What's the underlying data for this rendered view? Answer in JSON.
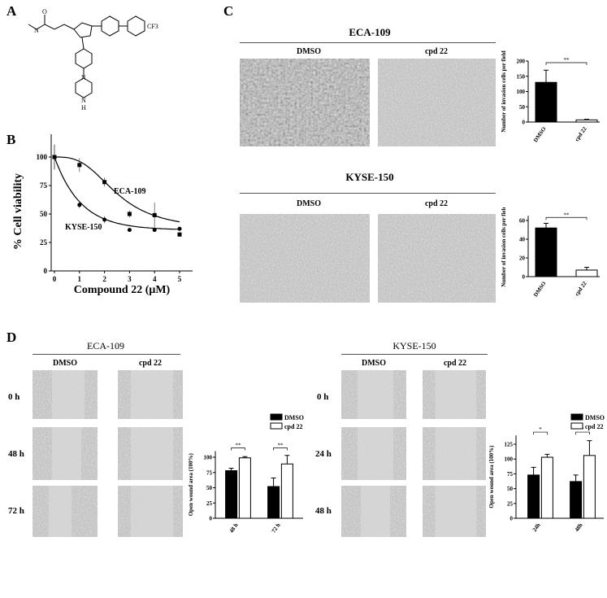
{
  "panels": {
    "A": {
      "label": "A",
      "substituent": "CF3",
      "atoms": {
        "N": "N",
        "H": "H",
        "O": "O"
      }
    },
    "B": {
      "label": "B"
    },
    "C": {
      "label": "C",
      "conditions": [
        "DMSO",
        "cpd 22"
      ],
      "cell_lines": [
        "ECA-109",
        "KYSE-150"
      ]
    },
    "D": {
      "label": "D",
      "left_title": "ECA-109",
      "right_title": "KYSE-150",
      "conditions": [
        "DMSO",
        "cpd 22"
      ],
      "left_rows": [
        "0 h",
        "48 h",
        "72 h"
      ],
      "right_rows": [
        "0 h",
        "24 h",
        "48 h"
      ]
    }
  },
  "chart_data": [
    {
      "id": "B",
      "type": "line",
      "xlabel": "Compound 22 (μM)",
      "ylabel": "% Cell viability",
      "xlim": [
        0,
        5
      ],
      "ylim": [
        0,
        110
      ],
      "xticks": [
        0,
        1,
        2,
        3,
        4,
        5
      ],
      "yticks": [
        0,
        25,
        50,
        75,
        100
      ],
      "series": [
        {
          "name": "ECA-109",
          "marker": "square",
          "x": [
            0,
            1,
            2,
            3,
            4,
            5
          ],
          "y": [
            100,
            93,
            78,
            50,
            49,
            32
          ],
          "err": [
            11,
            6,
            4,
            3,
            11,
            2
          ]
        },
        {
          "name": "KYSE-150",
          "marker": "circle",
          "x": [
            0,
            1,
            2,
            3,
            4,
            5
          ],
          "y": [
            100,
            58,
            45,
            36,
            36,
            37
          ],
          "err": [
            11,
            3,
            3,
            1,
            1,
            1
          ]
        }
      ]
    },
    {
      "id": "C1",
      "type": "bar",
      "ylabel": "Number of invasion cells per field",
      "categories": [
        "DMSO",
        "cpd 22"
      ],
      "values": [
        130,
        7
      ],
      "err": [
        40,
        2
      ],
      "ylim": [
        0,
        200
      ],
      "yticks": [
        0,
        50,
        100,
        150,
        200
      ],
      "significance": "**"
    },
    {
      "id": "C2",
      "type": "bar",
      "ylabel": "Number of invasion cells per field",
      "categories": [
        "DMSO",
        "cpd 22"
      ],
      "values": [
        52,
        7
      ],
      "err": [
        5,
        3
      ],
      "ylim": [
        0,
        65
      ],
      "yticks": [
        0,
        20,
        40,
        60
      ],
      "significance": "**"
    },
    {
      "id": "D1",
      "type": "bar",
      "ylabel": "Open wound area (100%)",
      "categories": [
        "48 h",
        "72 h"
      ],
      "series": [
        {
          "name": "DMSO",
          "values": [
            78,
            52
          ],
          "err": [
            4,
            14
          ]
        },
        {
          "name": "cpd 22",
          "values": [
            99,
            89
          ],
          "err": [
            2,
            14
          ]
        }
      ],
      "ylim": [
        0,
        110
      ],
      "yticks": [
        0,
        25,
        50,
        75,
        100
      ],
      "significance": [
        "**",
        "**"
      ],
      "legend": "top-right"
    },
    {
      "id": "D2",
      "type": "bar",
      "ylabel": "Open wound area (100%)",
      "categories": [
        "24h",
        "48h"
      ],
      "series": [
        {
          "name": "DMSO",
          "values": [
            73,
            62
          ],
          "err": [
            13,
            11
          ]
        },
        {
          "name": "cpd 22",
          "values": [
            103,
            106
          ],
          "err": [
            5,
            25
          ]
        }
      ],
      "ylim": [
        0,
        140
      ],
      "yticks": [
        0,
        25,
        50,
        75,
        100,
        125
      ],
      "significance": [
        "*",
        "*"
      ],
      "legend": "top-right"
    }
  ],
  "colors": {
    "bar_dmso": "#000000",
    "bar_cpd": "#ffffff"
  }
}
